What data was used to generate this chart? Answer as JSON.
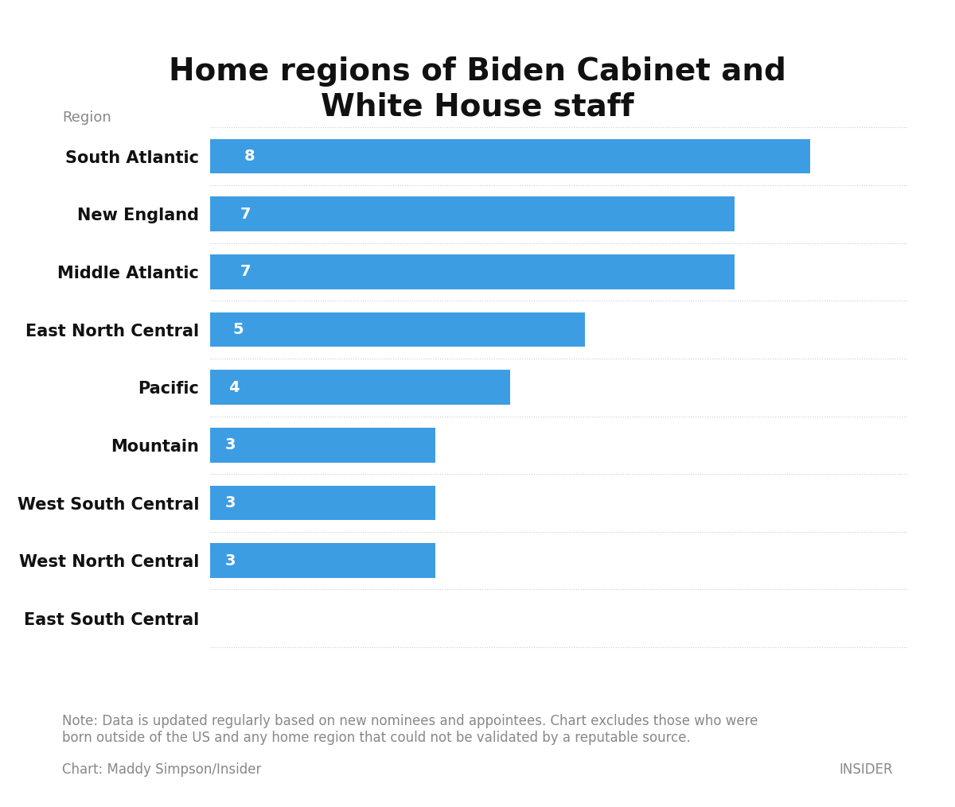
{
  "title": "Home regions of Biden Cabinet and\nWhite House staff",
  "categories": [
    "South Atlantic",
    "New England",
    "Middle Atlantic",
    "East North Central",
    "Pacific",
    "Mountain",
    "West South Central",
    "West North Central",
    "East South Central"
  ],
  "values": [
    8,
    7,
    7,
    5,
    4,
    3,
    3,
    3,
    0
  ],
  "bar_color": "#3d9de3",
  "label_color_inside": "#ffffff",
  "title_color": "#111111",
  "axis_label_color": "#888888",
  "category_label_color": "#111111",
  "note_text": "Note: Data is updated regularly based on new nominees and appointees. Chart excludes those who were\nborn outside of the US and any home region that could not be validated by a reputable source.",
  "chart_credit": "Chart: Maddy Simpson/Insider",
  "insider_text": "INSIDER",
  "bg_color": "#ffffff",
  "region_label": "Region",
  "x_max": 9,
  "bar_height": 0.6,
  "title_fontsize": 28,
  "category_fontsize": 15,
  "value_fontsize": 14,
  "note_fontsize": 12,
  "credit_fontsize": 12,
  "region_label_fontsize": 13
}
